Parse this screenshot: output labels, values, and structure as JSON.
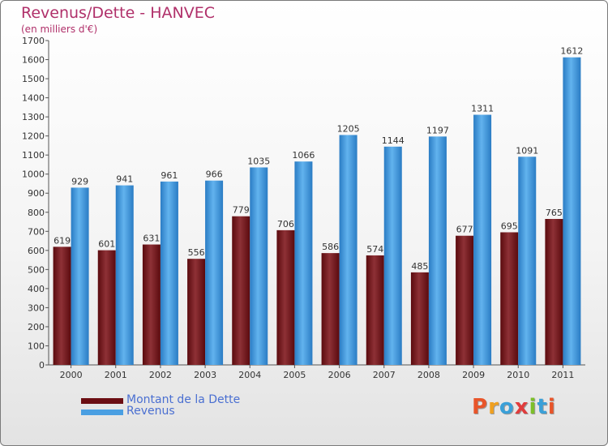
{
  "title": "Revenus/Dette - HANVEC",
  "subtitle": "(en milliers d'€)",
  "legend": {
    "items": [
      {
        "label": "Montant de la Dette",
        "color": "#6b0d12"
      },
      {
        "label": "Revenus",
        "color": "#4a9fe2"
      }
    ]
  },
  "logo": {
    "text": "Proxiti"
  },
  "chart_data": {
    "type": "bar",
    "categories": [
      "2000",
      "2001",
      "2002",
      "2003",
      "2004",
      "2005",
      "2006",
      "2007",
      "2008",
      "2009",
      "2010",
      "2011"
    ],
    "series": [
      {
        "name": "Montant de la Dette",
        "values": [
          619,
          601,
          631,
          556,
          779,
          706,
          586,
          574,
          485,
          677,
          695,
          765
        ],
        "color": "#6b0d12"
      },
      {
        "name": "Revenus",
        "values": [
          929,
          941,
          961,
          966,
          1035,
          1066,
          1205,
          1144,
          1197,
          1311,
          1091,
          1612
        ],
        "color": "#4a9fe2"
      }
    ],
    "ylim": [
      0,
      1700
    ],
    "ytick_step": 100,
    "grid": false,
    "legend_position": "bottom-left",
    "title": "Revenus/Dette - HANVEC",
    "xlabel": "",
    "ylabel": ""
  }
}
